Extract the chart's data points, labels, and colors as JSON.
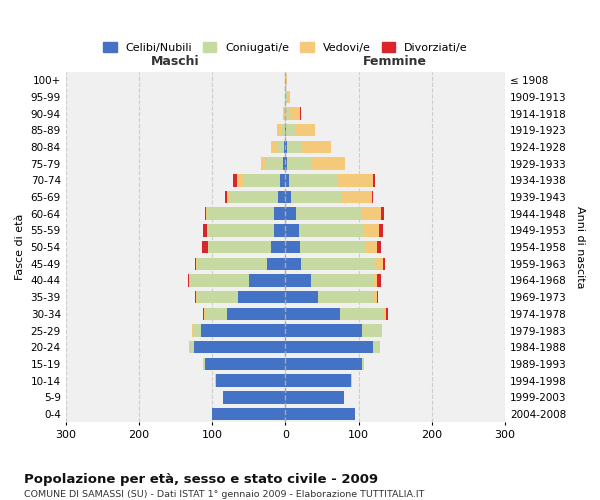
{
  "age_groups": [
    "0-4",
    "5-9",
    "10-14",
    "15-19",
    "20-24",
    "25-29",
    "30-34",
    "35-39",
    "40-44",
    "45-49",
    "50-54",
    "55-59",
    "60-64",
    "65-69",
    "70-74",
    "75-79",
    "80-84",
    "85-89",
    "90-94",
    "95-99",
    "100+"
  ],
  "birth_years": [
    "2004-2008",
    "1999-2003",
    "1994-1998",
    "1989-1993",
    "1984-1988",
    "1979-1983",
    "1974-1978",
    "1969-1973",
    "1964-1968",
    "1959-1963",
    "1954-1958",
    "1949-1953",
    "1944-1948",
    "1939-1943",
    "1934-1938",
    "1929-1933",
    "1924-1928",
    "1919-1923",
    "1914-1918",
    "1909-1913",
    "≤ 1908"
  ],
  "colors": {
    "celibi": "#4472c4",
    "coniugati": "#c5d9a0",
    "vedovi": "#f5c97a",
    "divorziati": "#d9262c"
  },
  "maschi": {
    "celibi": [
      100,
      85,
      95,
      110,
      125,
      115,
      80,
      65,
      50,
      25,
      20,
      15,
      15,
      10,
      8,
      3,
      2,
      1,
      0,
      0,
      0
    ],
    "coniugati": [
      0,
      0,
      1,
      2,
      5,
      10,
      30,
      55,
      80,
      95,
      85,
      90,
      90,
      65,
      50,
      25,
      10,
      5,
      1,
      0,
      0
    ],
    "vedovi": [
      0,
      0,
      0,
      0,
      1,
      2,
      1,
      2,
      1,
      2,
      1,
      2,
      3,
      5,
      8,
      5,
      8,
      5,
      2,
      1,
      0
    ],
    "divorziati": [
      0,
      0,
      0,
      0,
      0,
      1,
      1,
      2,
      2,
      2,
      8,
      5,
      2,
      2,
      5,
      0,
      0,
      0,
      0,
      0,
      0
    ]
  },
  "femmine": {
    "celibi": [
      95,
      80,
      90,
      105,
      120,
      105,
      75,
      45,
      35,
      22,
      20,
      18,
      15,
      8,
      5,
      2,
      2,
      1,
      0,
      0,
      0
    ],
    "coniugati": [
      0,
      0,
      1,
      2,
      8,
      25,
      60,
      75,
      85,
      100,
      90,
      90,
      90,
      70,
      65,
      35,
      20,
      12,
      5,
      2,
      1
    ],
    "vedovi": [
      0,
      0,
      0,
      0,
      1,
      2,
      3,
      5,
      5,
      12,
      15,
      20,
      25,
      40,
      50,
      45,
      40,
      28,
      15,
      5,
      1
    ],
    "divorziati": [
      0,
      0,
      0,
      0,
      0,
      0,
      2,
      2,
      5,
      2,
      5,
      5,
      5,
      2,
      2,
      0,
      0,
      0,
      2,
      0,
      0
    ]
  },
  "title": "Popolazione per età, sesso e stato civile - 2009",
  "subtitle": "COMUNE DI SAMASSI (SU) - Dati ISTAT 1° gennaio 2009 - Elaborazione TUTTITALIA.IT",
  "xlabel_maschi": "Maschi",
  "xlabel_femmine": "Femmine",
  "ylabel_left": "Fasce di età",
  "ylabel_right": "Anni di nascita",
  "xlim": 300,
  "bg_color": "#ffffff",
  "plot_bg_color": "#f0f0f0",
  "grid_color": "#cccccc",
  "legend_labels": [
    "Celibi/Nubili",
    "Coniugati/e",
    "Vedovi/e",
    "Divorziati/e"
  ]
}
